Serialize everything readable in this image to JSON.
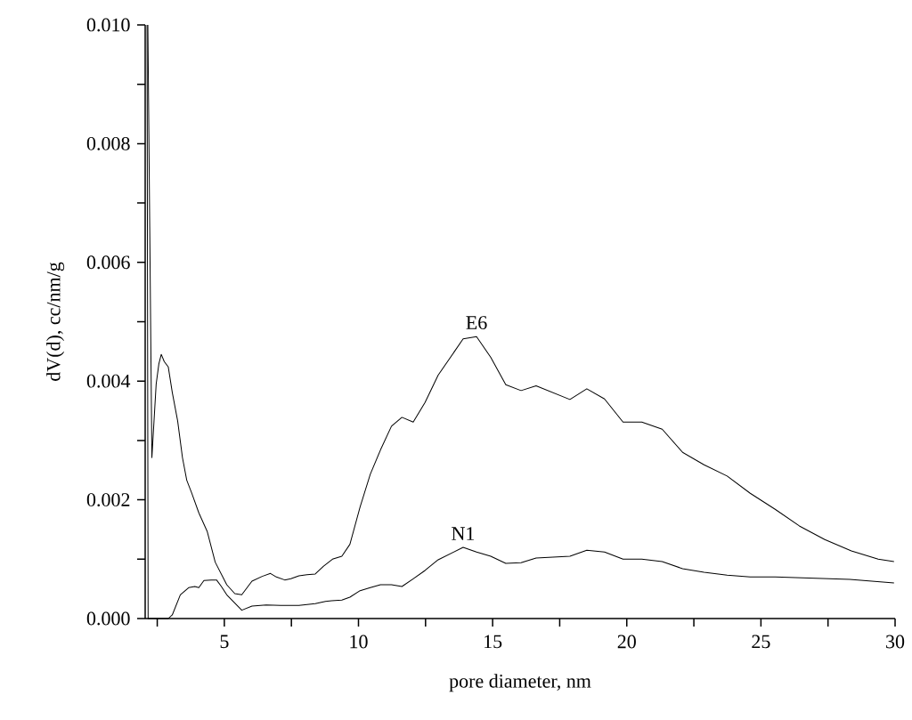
{
  "chart_data": {
    "type": "line",
    "xlabel": "pore diameter, nm",
    "ylabel": "dV(d), cc/nm/g",
    "marker": "none",
    "line_style": "solid",
    "grid": false,
    "legend": false,
    "xlim": [
      2.05,
      30
    ],
    "ylim": [
      0,
      0.01
    ],
    "xticks": [
      {
        "value": 2.5,
        "label": null
      },
      5,
      {
        "value": 7.5,
        "label": null
      },
      10,
      {
        "value": 12.5,
        "label": null
      },
      15,
      {
        "value": 17.5,
        "label": null
      },
      20,
      {
        "value": 22.5,
        "label": null
      },
      25,
      {
        "value": 27.5,
        "label": null
      },
      30
    ],
    "yticks": [
      {
        "value": 0,
        "label": "0.000"
      },
      {
        "value": 0.001,
        "label": null
      },
      {
        "value": 0.002,
        "label": "0.002"
      },
      {
        "value": 0.003,
        "label": null
      },
      {
        "value": 0.004,
        "label": "0.004"
      },
      {
        "value": 0.005,
        "label": null
      },
      {
        "value": 0.006,
        "label": "0.006"
      },
      {
        "value": 0.007,
        "label": null
      },
      {
        "value": 0.008,
        "label": "0.008"
      },
      {
        "value": 0.009,
        "label": null
      },
      {
        "value": 0.01,
        "label": "0.010"
      }
    ],
    "series": [
      {
        "name": "E6",
        "color": "#000000",
        "x": [
          2.15,
          2.3,
          2.46,
          2.56,
          2.65,
          2.76,
          2.91,
          3.06,
          3.26,
          3.44,
          3.6,
          3.78,
          4.05,
          4.36,
          4.66,
          5.09,
          5.39,
          5.65,
          6.03,
          6.41,
          6.72,
          6.94,
          7.25,
          7.48,
          7.78,
          8.08,
          8.39,
          8.69,
          9.03,
          9.38,
          9.68,
          10.06,
          10.44,
          10.82,
          11.23,
          11.62,
          12.04,
          12.48,
          12.97,
          13.9,
          14.4,
          14.93,
          15.49,
          16.06,
          16.62,
          17.88,
          18.51,
          19.17,
          19.86,
          20.56,
          21.32,
          22.08,
          22.88,
          23.74,
          24.6,
          25.53,
          26.43,
          27.38,
          28.37,
          29.37,
          29.96
        ],
        "values": [
          0.01,
          0.00271,
          0.00395,
          0.00429,
          0.00445,
          0.00433,
          0.00424,
          0.00381,
          0.00333,
          0.00271,
          0.00233,
          0.00212,
          0.00178,
          0.00147,
          0.00095,
          0.00057,
          0.00042,
          0.0004,
          0.00063,
          0.00071,
          0.00076,
          0.0007,
          0.00065,
          0.00067,
          0.00072,
          0.00074,
          0.00075,
          0.00088,
          0.001,
          0.00105,
          0.00125,
          0.00188,
          0.00243,
          0.00284,
          0.00324,
          0.00339,
          0.00331,
          0.00364,
          0.0041,
          0.00471,
          0.00475,
          0.0044,
          0.00394,
          0.00384,
          0.00392,
          0.00369,
          0.00387,
          0.0037,
          0.00331,
          0.00331,
          0.00319,
          0.0028,
          0.00259,
          0.0024,
          0.00211,
          0.00184,
          0.00156,
          0.00133,
          0.00114,
          0.001,
          0.00096
        ]
      },
      {
        "name": "N1",
        "color": "#000000",
        "x": [
          2.12,
          2.16,
          2.91,
          3.06,
          3.36,
          3.67,
          3.9,
          4.05,
          4.24,
          4.51,
          4.71,
          4.89,
          5.09,
          5.65,
          6.03,
          6.56,
          7.1,
          7.78,
          8.39,
          8.77,
          9.0,
          9.38,
          9.68,
          10.06,
          10.44,
          10.82,
          11.23,
          11.62,
          12.04,
          12.48,
          12.97,
          13.9,
          14.4,
          14.93,
          15.49,
          16.06,
          16.62,
          17.88,
          18.51,
          19.17,
          19.86,
          20.56,
          21.32,
          22.08,
          22.88,
          23.74,
          24.6,
          25.53,
          28.31,
          29.96
        ],
        "values": [
          0.01,
          0.0,
          0.0,
          6e-05,
          0.0004,
          0.00052,
          0.00054,
          0.00052,
          0.00064,
          0.00065,
          0.00065,
          0.00054,
          0.0004,
          0.00014,
          0.00021,
          0.00023,
          0.00022,
          0.00022,
          0.00025,
          0.00029,
          0.0003,
          0.00031,
          0.00036,
          0.00047,
          0.00052,
          0.00057,
          0.00057,
          0.00054,
          0.00067,
          0.00081,
          0.00099,
          0.0012,
          0.00112,
          0.00105,
          0.00093,
          0.00094,
          0.00102,
          0.00105,
          0.00115,
          0.00112,
          0.001,
          0.001,
          0.00096,
          0.00084,
          0.00078,
          0.00073,
          0.0007,
          0.0007,
          0.00066,
          0.0006
        ]
      }
    ]
  }
}
